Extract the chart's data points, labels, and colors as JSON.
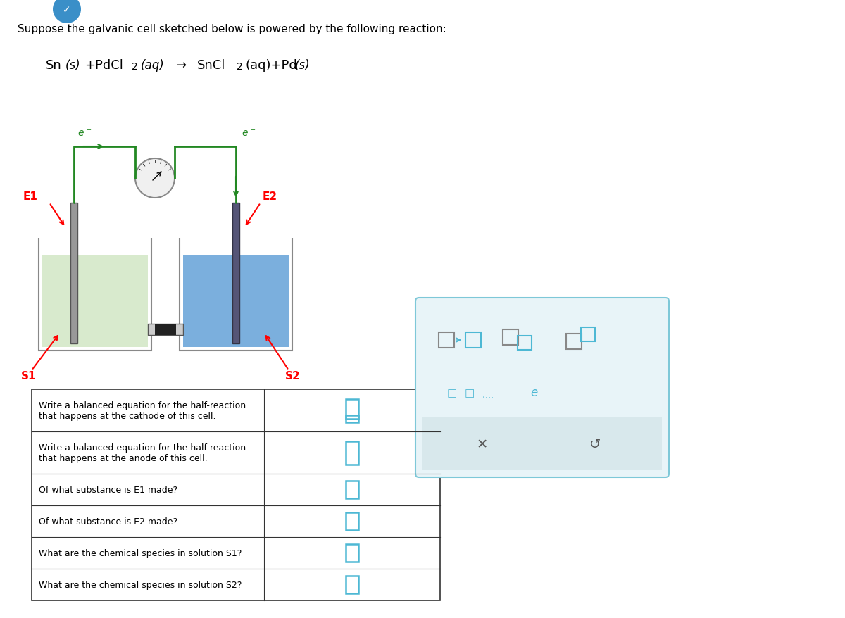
{
  "title_text": "Suppose the galvanic cell sketched below is powered by the following reaction:",
  "reaction_text": "Sn(s)+PdCl₂(aq)  →  SnCl₂(aq)+Pd(s)",
  "bg_color": "#ffffff",
  "table_rows": [
    "Write a balanced equation for the half-reaction\nthat happens at the cathode of this cell.",
    "Write a balanced equation for the half-reaction\nthat happens at the anode of this cell.",
    "Of what substance is E1 made?",
    "Of what substance is E2 made?",
    "What are the chemical species in solution S1?",
    "What are the chemical species in solution S2?"
  ],
  "table_border_color": "#333333",
  "input_box_color": "#4db8d4",
  "panel_bg": "#e8f4f8",
  "panel_border": "#7ec8d8",
  "button_bg": "#d8e8ec"
}
